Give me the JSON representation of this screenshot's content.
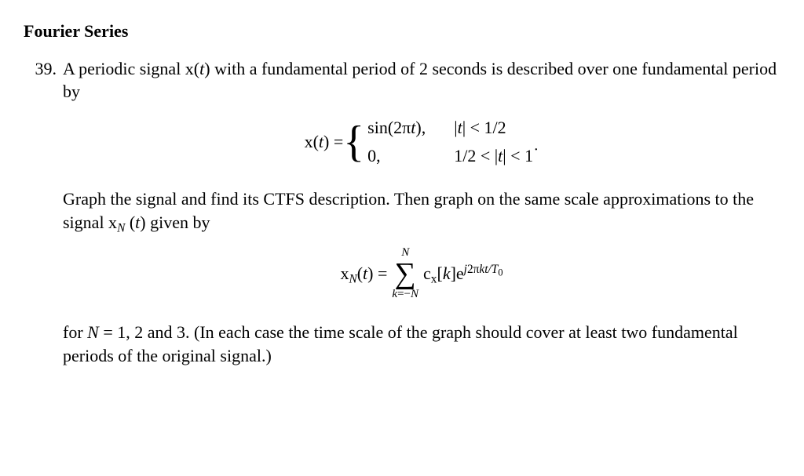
{
  "heading": "Fourier Series",
  "number": "39.",
  "p1_a": "A periodic signal x(",
  "p1_b": ") with a fundamental period of 2 seconds is described over one fundamental period by",
  "var_t": "t",
  "eq1_lhs_a": "x(",
  "eq1_lhs_b": ") = ",
  "case1_expr_a": "sin(2π",
  "case1_expr_b": "),",
  "case1_cond_a": "|",
  "case1_cond_b": "| < 1/2",
  "case2_expr": "0,",
  "case2_cond_a": "1/2 < |",
  "case2_cond_b": "| < 1",
  "p2_a": "Graph the signal and find its CTFS description. Then graph on the same scale approximations to the signal x",
  "p2_sub": "N",
  "p2_b": " (",
  "p2_c": ") given by",
  "eq2_lhs_a": "x",
  "eq2_lhs_b": "(",
  "eq2_lhs_c": ") = ",
  "sum_top": "N",
  "sum_sigma": "∑",
  "sum_bot_a": "k",
  "sum_bot_b": "=−",
  "sum_bot_c": "N",
  "term_a": "c",
  "term_sub1": "x",
  "term_b": "[",
  "term_k": "k",
  "term_c": "]e",
  "exp_a": "j",
  "exp_b": "2π",
  "exp_c": "kt",
  "exp_d": "/T",
  "exp_e": "0",
  "p3_a": "for ",
  "p3_N": "N",
  "p3_b": " = 1, 2 and 3. (In each case the time scale of the graph should cover at least two fundamental periods of the original signal.)"
}
